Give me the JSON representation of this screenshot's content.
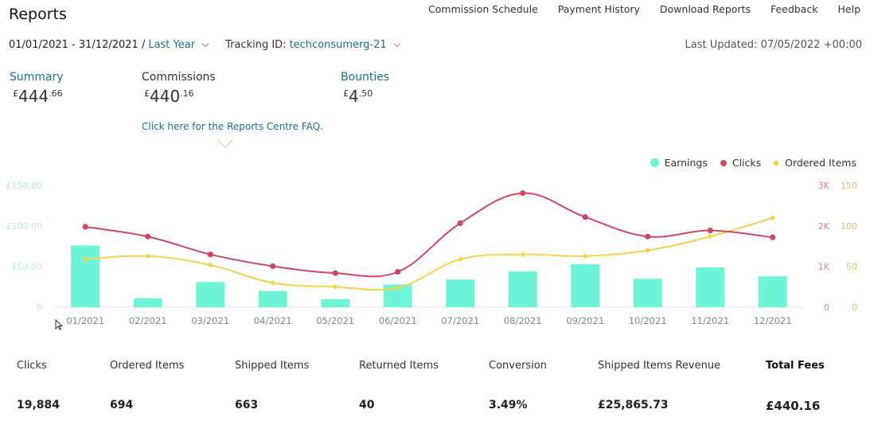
{
  "header": {
    "title": "Reports",
    "nav": [
      "Commission Schedule",
      "Payment History",
      "Download Reports",
      "Feedback",
      "Help"
    ]
  },
  "filters": {
    "date_range": "01/01/2021 - 31/12/2021 /",
    "period": "Last Year",
    "tracking_label": "Tracking ID:",
    "tracking_id": "techconsumerg-21",
    "last_updated": "Last Updated: 07/05/2022 +00:00"
  },
  "summary": [
    {
      "label": "Summary",
      "currency": "£",
      "whole": "444",
      "fraction": ".66",
      "is_link": true
    },
    {
      "label": "Commissions",
      "currency": "£",
      "whole": "440",
      "fraction": ".16",
      "is_link": false
    },
    {
      "label": "Bounties",
      "currency": "£",
      "whole": "4",
      "fraction": ".50",
      "is_link": true
    }
  ],
  "faq_link": "Click here for the Reports Centre FAQ.",
  "legend": {
    "earnings": "Earnings",
    "clicks": "Clicks",
    "ordered": "Ordered Items"
  },
  "colors": {
    "earnings": "#6ef5d8",
    "clicks": "#cd4765",
    "ordered": "#f5d34f",
    "link": "#1f6d8f"
  },
  "chart_data": {
    "type": "bar",
    "categories": [
      "01/2021",
      "02/2021",
      "03/2021",
      "04/2021",
      "05/2021",
      "06/2021",
      "07/2021",
      "08/2021",
      "09/2021",
      "10/2021",
      "11/2021",
      "12/2021"
    ],
    "series": [
      {
        "name": "Earnings",
        "type": "bar",
        "axis": "left",
        "values": [
          76,
          11,
          31,
          20,
          10,
          28,
          34,
          44,
          53,
          35,
          49,
          38
        ]
      },
      {
        "name": "Clicks",
        "type": "line",
        "axis": "right",
        "values": [
          1980,
          1740,
          1300,
          1010,
          840,
          870,
          2070,
          2810,
          2220,
          1740,
          1890,
          1720
        ]
      },
      {
        "name": "Ordered Items",
        "type": "line",
        "axis": "right2",
        "values": [
          59,
          63,
          52,
          30,
          25,
          24,
          59,
          65,
          63,
          70,
          87,
          110
        ]
      }
    ],
    "left_axis": {
      "ticks": [
        "£150.00",
        "£100.00",
        "£50.00",
        "0"
      ],
      "range": [
        0,
        150
      ]
    },
    "right_axis": {
      "ticks": [
        "3K",
        "2K",
        "1K",
        "0"
      ],
      "range": [
        0,
        3000
      ]
    },
    "right2_axis": {
      "ticks": [
        "150",
        "100",
        "50",
        "0"
      ],
      "range": [
        0,
        150
      ]
    },
    "legend_position": "top-right"
  },
  "stats": [
    {
      "label": "Clicks",
      "value": "19,884"
    },
    {
      "label": "Ordered Items",
      "value": "694"
    },
    {
      "label": "Shipped Items",
      "value": "663"
    },
    {
      "label": "Returned Items",
      "value": "40"
    },
    {
      "label": "Conversion",
      "value": "3.49%"
    },
    {
      "label": "Shipped Items Revenue",
      "value": "£25,865.73"
    },
    {
      "label": "Total Fees",
      "value": "£440.16"
    }
  ]
}
